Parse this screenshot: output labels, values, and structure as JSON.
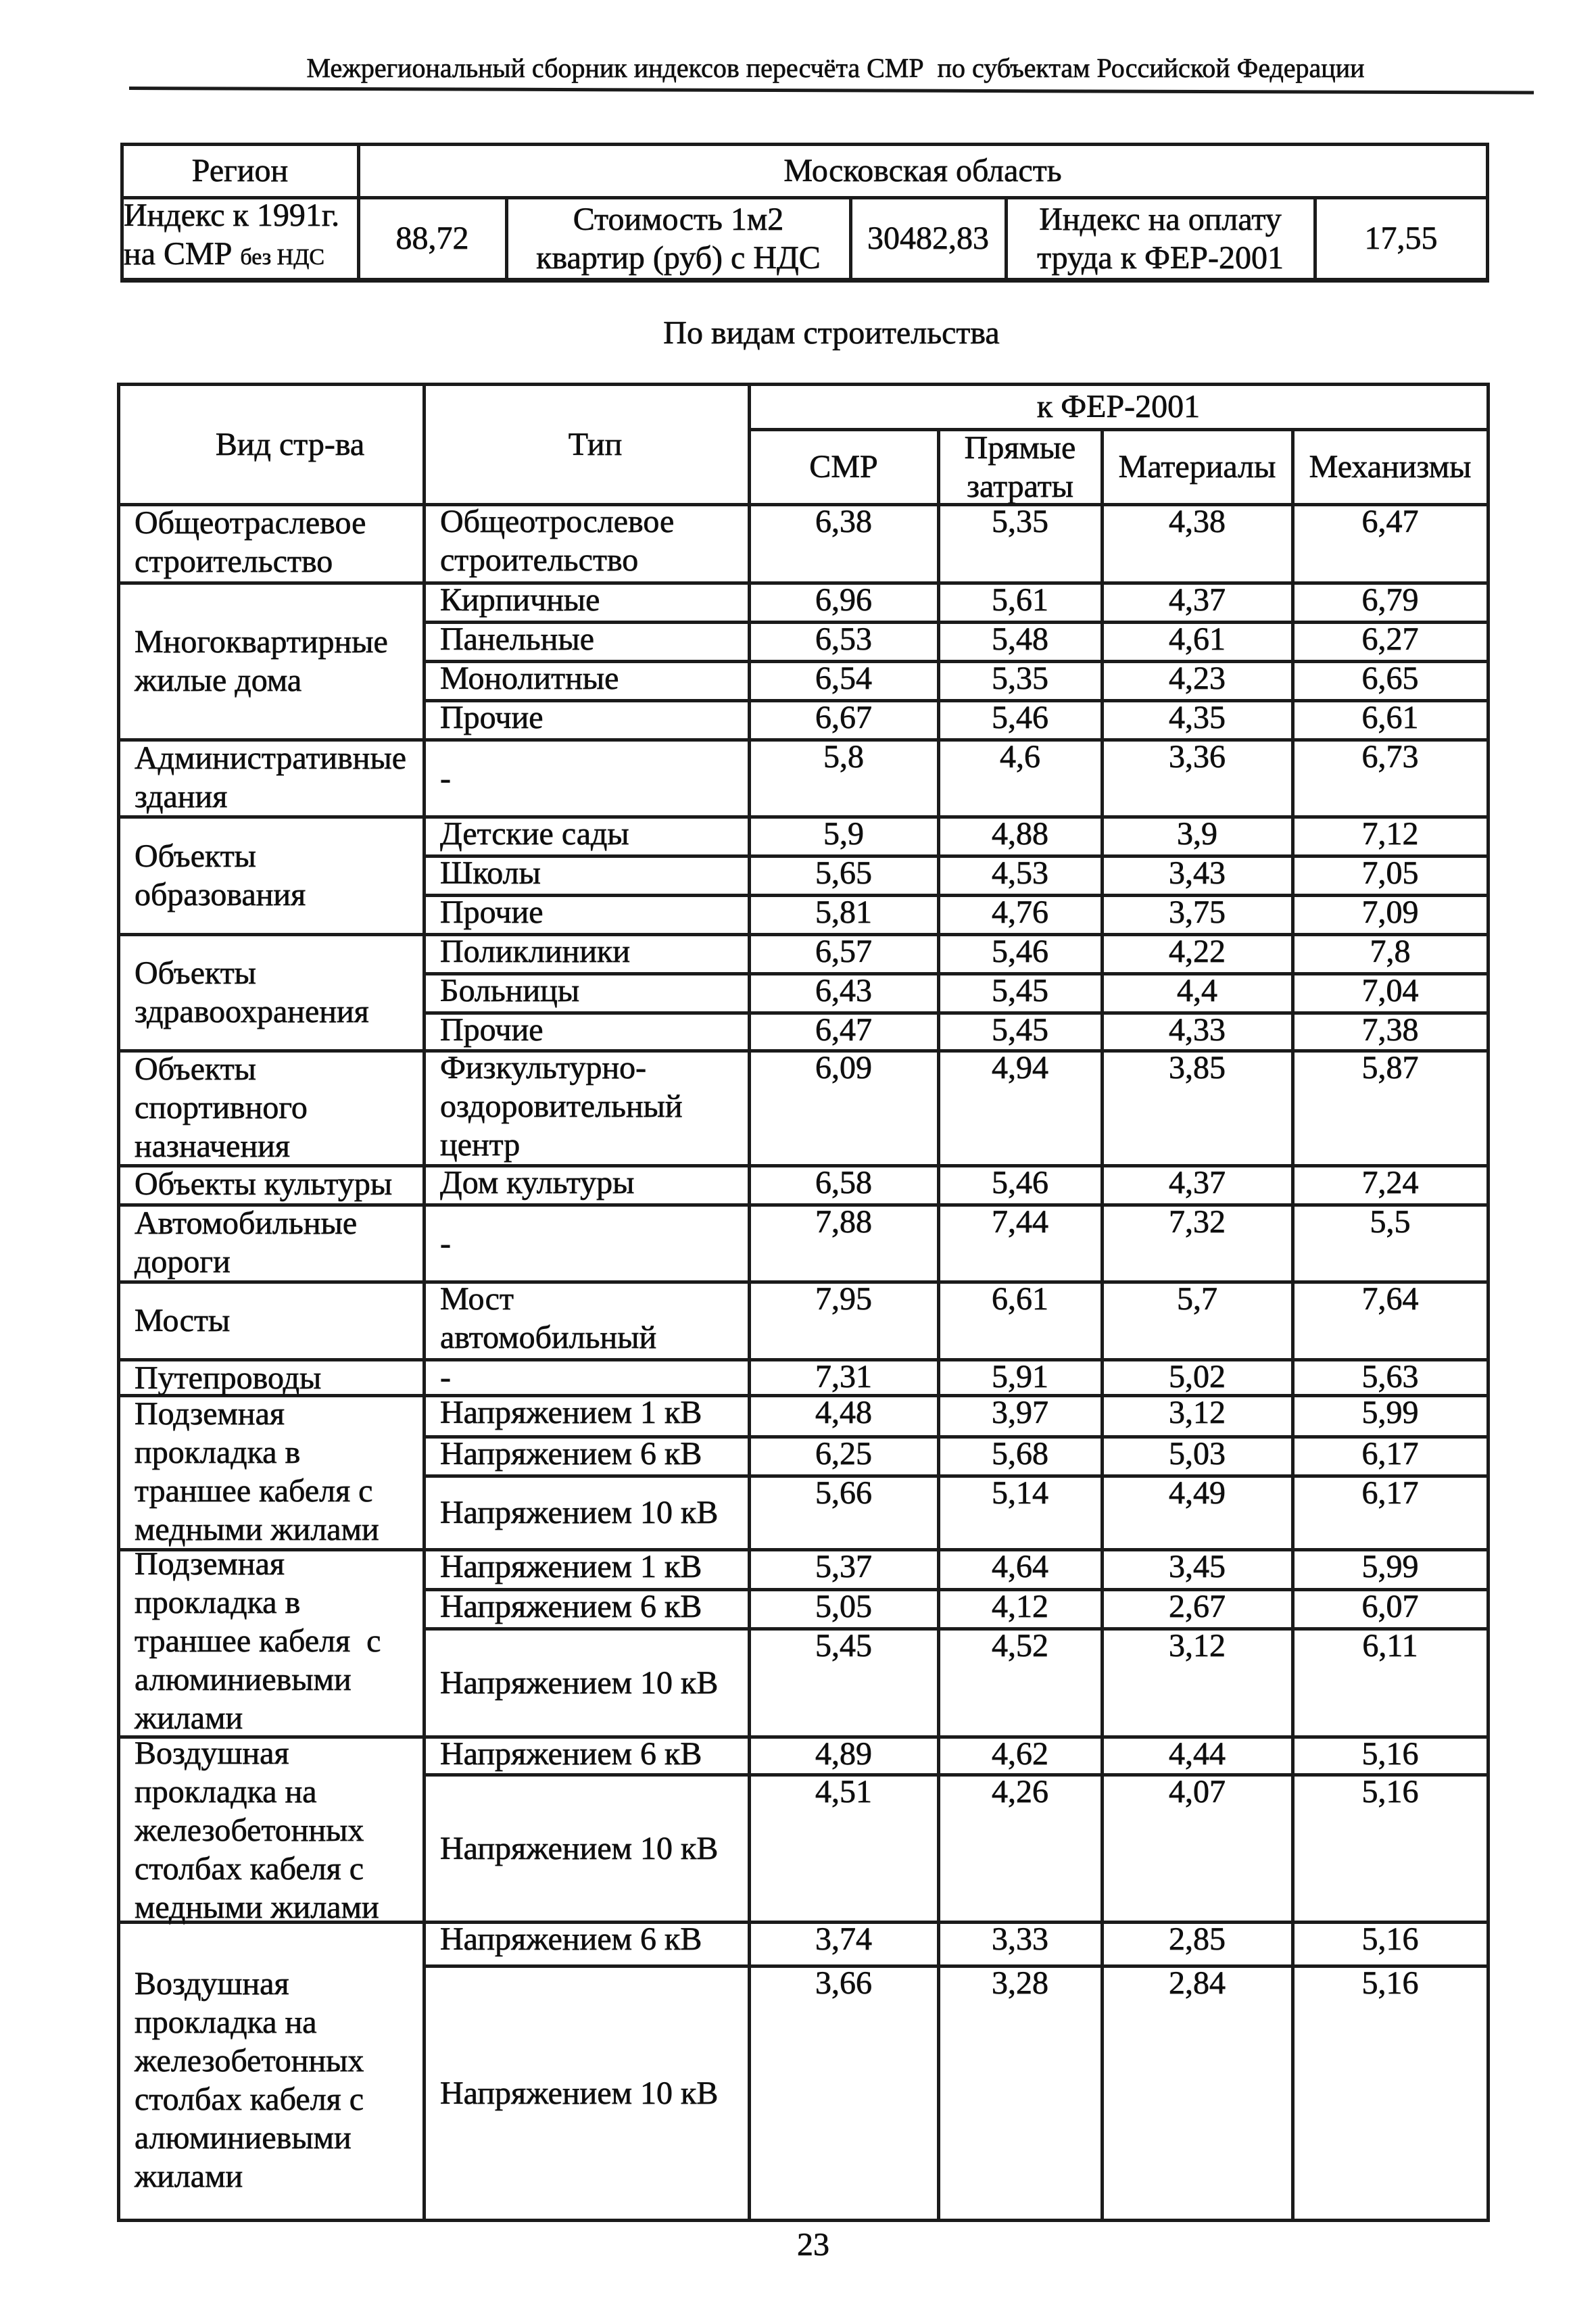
{
  "page": {
    "header_title": "Межрегиональный сборник индексов пересчёта СМР  по субъектам Российской Федерации",
    "section_title": "По видам строительства",
    "page_number": "23"
  },
  "region_table": {
    "region_label": "Регион",
    "region_value": "Московская область",
    "metrics": [
      {
        "label_line1": "Индекс к 1991г.",
        "label_line2_main": "на СМР ",
        "label_line2_small": "без НДС",
        "value": "88,72"
      },
      {
        "label": "Стоимость 1м2\nквартир (руб) с НДС",
        "value": "30482,83"
      },
      {
        "label": "Индекс на оплату\nтруда к ФЕР-2001",
        "value": "17,55"
      }
    ]
  },
  "construction_table": {
    "headers": {
      "kind": "Вид стр-ва",
      "type": "Тип",
      "fer_group": "к ФЕР-2001",
      "columns": [
        "СМР",
        "Прямые\nзатраты",
        "Материалы",
        "Механизмы"
      ]
    },
    "groups": [
      {
        "kind": "Общеотраслевое\nстроительство",
        "rows": [
          {
            "type": "Общеотрослевое\nстроительство",
            "values": [
              "6,38",
              "5,35",
              "4,38",
              "6,47"
            ]
          }
        ]
      },
      {
        "kind": "Многоквартирные\nжилые дома",
        "rows": [
          {
            "type": "Кирпичные",
            "values": [
              "6,96",
              "5,61",
              "4,37",
              "6,79"
            ]
          },
          {
            "type": "Панельные",
            "values": [
              "6,53",
              "5,48",
              "4,61",
              "6,27"
            ]
          },
          {
            "type": "Монолитные",
            "values": [
              "6,54",
              "5,35",
              "4,23",
              "6,65"
            ]
          },
          {
            "type": "Прочие",
            "values": [
              "6,67",
              "5,46",
              "4,35",
              "6,61"
            ]
          }
        ]
      },
      {
        "kind": "Административные\nздания",
        "rows": [
          {
            "type": "-",
            "values": [
              "5,8",
              "4,6",
              "3,36",
              "6,73"
            ]
          }
        ]
      },
      {
        "kind": "Объекты\nобразования",
        "rows": [
          {
            "type": "Детские сады",
            "values": [
              "5,9",
              "4,88",
              "3,9",
              "7,12"
            ]
          },
          {
            "type": "Школы",
            "values": [
              "5,65",
              "4,53",
              "3,43",
              "7,05"
            ]
          },
          {
            "type": "Прочие",
            "values": [
              "5,81",
              "4,76",
              "3,75",
              "7,09"
            ]
          }
        ]
      },
      {
        "kind": "Объекты\nздравоохранения",
        "rows": [
          {
            "type": "Поликлиники",
            "values": [
              "6,57",
              "5,46",
              "4,22",
              "7,8"
            ]
          },
          {
            "type": "Больницы",
            "values": [
              "6,43",
              "5,45",
              "4,4",
              "7,04"
            ]
          },
          {
            "type": "Прочие",
            "values": [
              "6,47",
              "5,45",
              "4,33",
              "7,38"
            ]
          }
        ]
      },
      {
        "kind": "Объекты\nспортивного\nназначения",
        "rows": [
          {
            "type": "Физкультурно-\nоздоровительный\nцентр",
            "values": [
              "6,09",
              "4,94",
              "3,85",
              "5,87"
            ]
          }
        ]
      },
      {
        "kind": "Объекты культуры",
        "rows": [
          {
            "type": "Дом культуры",
            "values": [
              "6,58",
              "5,46",
              "4,37",
              "7,24"
            ]
          }
        ]
      },
      {
        "kind": "Автомобильные\nдороги",
        "rows": [
          {
            "type": "-",
            "values": [
              "7,88",
              "7,44",
              "7,32",
              "5,5"
            ]
          }
        ]
      },
      {
        "kind": "Мосты",
        "rows": [
          {
            "type": "Мост\nавтомобильный",
            "values": [
              "7,95",
              "6,61",
              "5,7",
              "7,64"
            ]
          }
        ]
      },
      {
        "kind": "Путепроводы",
        "rows": [
          {
            "type": "-",
            "values": [
              "7,31",
              "5,91",
              "5,02",
              "5,63"
            ]
          }
        ]
      },
      {
        "kind": "Подземная\nпрокладка в\nтраншее кабеля с\nмедными жилами",
        "rows": [
          {
            "type": "Напряжением 1 кВ",
            "values": [
              "4,48",
              "3,97",
              "3,12",
              "5,99"
            ]
          },
          {
            "type": "Напряжением 6 кВ",
            "values": [
              "6,25",
              "5,68",
              "5,03",
              "6,17"
            ]
          },
          {
            "type": "Напряжением 10 кВ",
            "values": [
              "5,66",
              "5,14",
              "4,49",
              "6,17"
            ]
          }
        ]
      },
      {
        "kind": "Подземная\nпрокладка в\nтраншее кабеля  с\nалюминиевыми\nжилами",
        "rows": [
          {
            "type": "Напряжением 1 кВ",
            "values": [
              "5,37",
              "4,64",
              "3,45",
              "5,99"
            ]
          },
          {
            "type": "Напряжением 6 кВ",
            "values": [
              "5,05",
              "4,12",
              "2,67",
              "6,07"
            ]
          },
          {
            "type": "Напряжением 10 кВ",
            "values": [
              "5,45",
              "4,52",
              "3,12",
              "6,11"
            ]
          }
        ]
      },
      {
        "kind": "Воздушная\nпрокладка на\nжелезобетонных\nстолбах кабеля с\nмедными жилами",
        "rows": [
          {
            "type": "Напряжением 6 кВ",
            "values": [
              "4,89",
              "4,62",
              "4,44",
              "5,16"
            ]
          },
          {
            "type": "Напряжением 10 кВ",
            "values": [
              "4,51",
              "4,26",
              "4,07",
              "5,16"
            ]
          }
        ]
      },
      {
        "kind": "Воздушная\nпрокладка на\nжелезобетонных\nстолбах кабеля с\nалюминиевыми\nжилами",
        "rows": [
          {
            "type": "Напряжением 6 кВ",
            "values": [
              "3,74",
              "3,33",
              "2,85",
              "5,16"
            ]
          },
          {
            "type": "Напряжением 10 кВ",
            "values": [
              "3,66",
              "3,28",
              "2,84",
              "5,16"
            ]
          }
        ]
      }
    ]
  }
}
